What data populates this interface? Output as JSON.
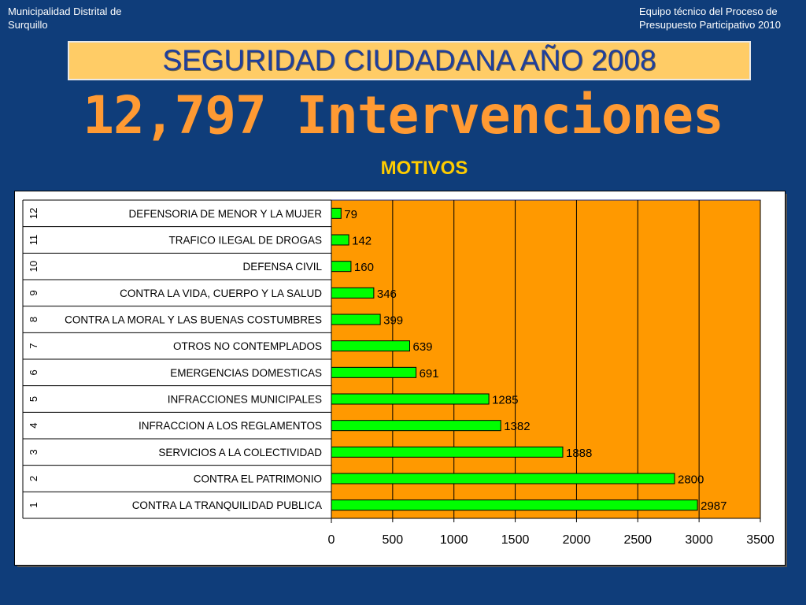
{
  "header": {
    "left_line1": "Municipalidad Distrital de",
    "left_line2": "Surquillo",
    "right_line1": "Equipo técnico del Proceso de",
    "right_line2": "Presupuesto Participativo 2010"
  },
  "title": "SEGURIDAD CIUDADANA AÑO 2008",
  "big_title": "12,797 Intervenciones",
  "subtitle": "MOTIVOS",
  "colors": {
    "background": "#0f3d7a",
    "plot_area": "#ff9900",
    "bar": "#00ff00",
    "title_box": "#ffcc66",
    "title_text": "#1f3f9c",
    "big_title": "#ff9a33",
    "subtitle": "#ffcc00"
  },
  "chart_data": {
    "type": "bar",
    "orientation": "horizontal",
    "row_numbers": [
      "1",
      "2",
      "3",
      "4",
      "5",
      "6",
      "7",
      "8",
      "9",
      "10",
      "11",
      "12"
    ],
    "categories": [
      "CONTRA LA TRANQUILIDAD PUBLICA",
      "CONTRA EL PATRIMONIO",
      "SERVICIOS A LA COLECTIVIDAD",
      "INFRACCION A LOS REGLAMENTOS",
      "INFRACCIONES MUNICIPALES",
      "EMERGENCIAS DOMESTICAS",
      "OTROS NO CONTEMPLADOS",
      "CONTRA LA MORAL Y LAS BUENAS COSTUMBRES",
      "CONTRA LA VIDA, CUERPO Y LA SALUD",
      "DEFENSA CIVIL",
      "TRAFICO ILEGAL DE DROGAS",
      "DEFENSORIA DE MENOR Y LA MUJER"
    ],
    "values": [
      2987,
      2800,
      1888,
      1382,
      1285,
      691,
      639,
      399,
      346,
      160,
      142,
      79
    ],
    "xlim": [
      0,
      3500
    ],
    "xticks": [
      0,
      500,
      1000,
      1500,
      2000,
      2500,
      3000,
      3500
    ],
    "gridlines": "vertical",
    "legend": "none"
  }
}
